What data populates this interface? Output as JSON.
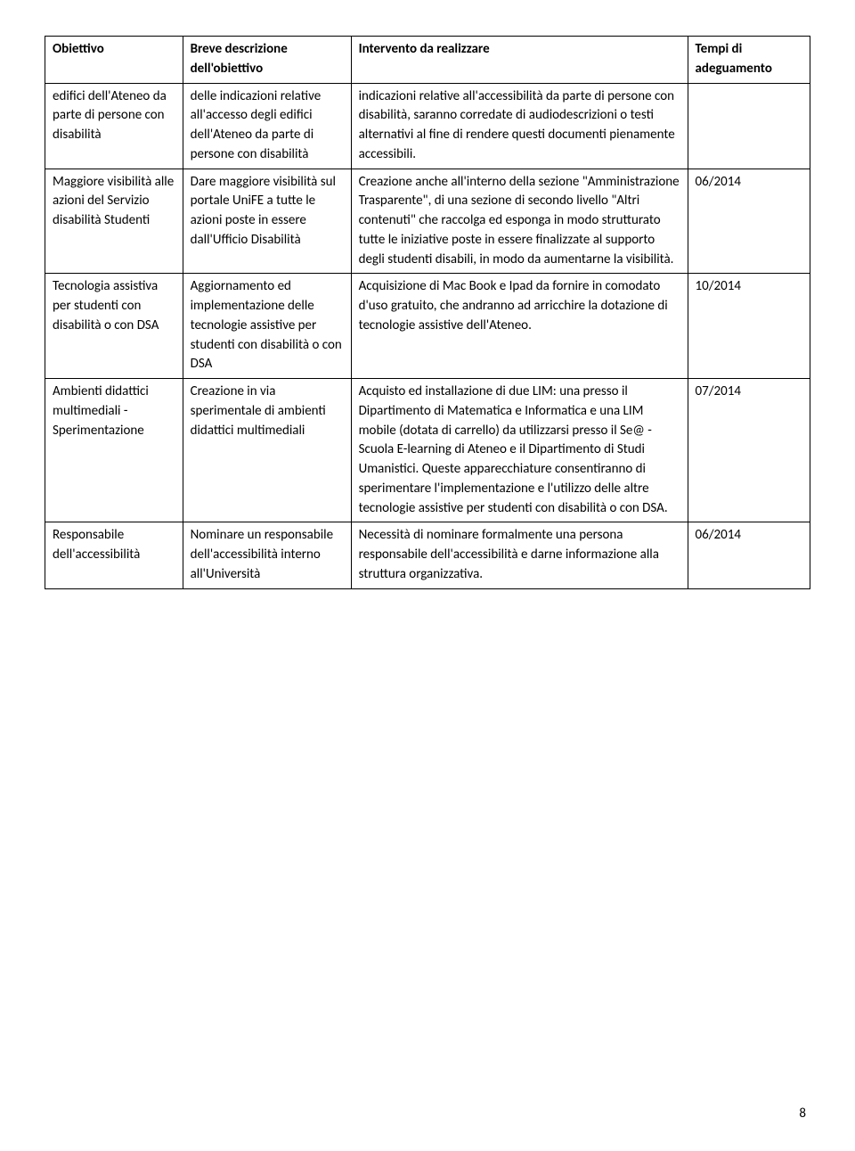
{
  "table": {
    "headers": {
      "obiettivo": "Obiettivo",
      "descrizione": "Breve descrizione dell'obiettivo",
      "intervento": "Intervento da realizzare",
      "tempi": "Tempi di adeguamento"
    },
    "rows": [
      {
        "obiettivo": "edifici dell'Ateneo da parte di persone con disabilità",
        "descrizione": "delle indicazioni relative all'accesso degli edifici dell'Ateneo da parte di persone con disabilità",
        "intervento": "indicazioni relative all'accessibilità da parte di persone con disabilità,  saranno corredate di audiodescrizioni o testi alternativi al fine di rendere questi documenti pienamente accessibili.",
        "tempi": ""
      },
      {
        "obiettivo": "Maggiore visibilità alle azioni del Servizio disabilità Studenti",
        "descrizione": "Dare maggiore visibilità sul portale UniFE a tutte le azioni poste in essere dall'Ufficio Disabilità",
        "intervento": "Creazione anche all'interno della sezione \"Amministrazione Trasparente\", di una sezione di secondo livello \"Altri contenuti\" che raccolga ed esponga in modo strutturato tutte le iniziative poste in essere finalizzate al supporto degli studenti disabili, in modo da aumentarne la visibilità.",
        "tempi": "06/2014"
      },
      {
        "obiettivo": "Tecnologia assistiva per studenti con disabilità o con DSA",
        "descrizione": "Aggiornamento ed implementazione delle tecnologie assistive per studenti con disabilità o con DSA",
        "intervento": "Acquisizione di Mac Book e Ipad da fornire in comodato d'uso gratuito, che andranno ad arricchire la dotazione di tecnologie assistive dell'Ateneo.",
        "tempi": "10/2014"
      },
      {
        "obiettivo": "Ambienti didattici multimediali - Sperimentazione",
        "descrizione": "Creazione in via sperimentale di ambienti didattici multimediali",
        "intervento": "Acquisto ed installazione di due LIM: una presso il Dipartimento di Matematica e Informatica e una LIM mobile (dotata di carrello) da utilizzarsi presso il Se@ - Scuola E-learning di Ateneo e il Dipartimento di Studi Umanistici. Queste apparecchiature consentiranno di sperimentare l'implementazione e l'utilizzo delle altre tecnologie assistive per studenti con disabilità o con DSA.",
        "tempi": "07/2014"
      },
      {
        "obiettivo": "Responsabile dell'accessibilità",
        "descrizione": "Nominare un responsabile dell'accessibilità interno all'Università",
        "intervento": "Necessità di nominare formalmente una persona responsabile dell'accessibilità e darne informazione alla struttura organizzativa.",
        "tempi": "06/2014"
      }
    ]
  },
  "pageNumber": "8"
}
